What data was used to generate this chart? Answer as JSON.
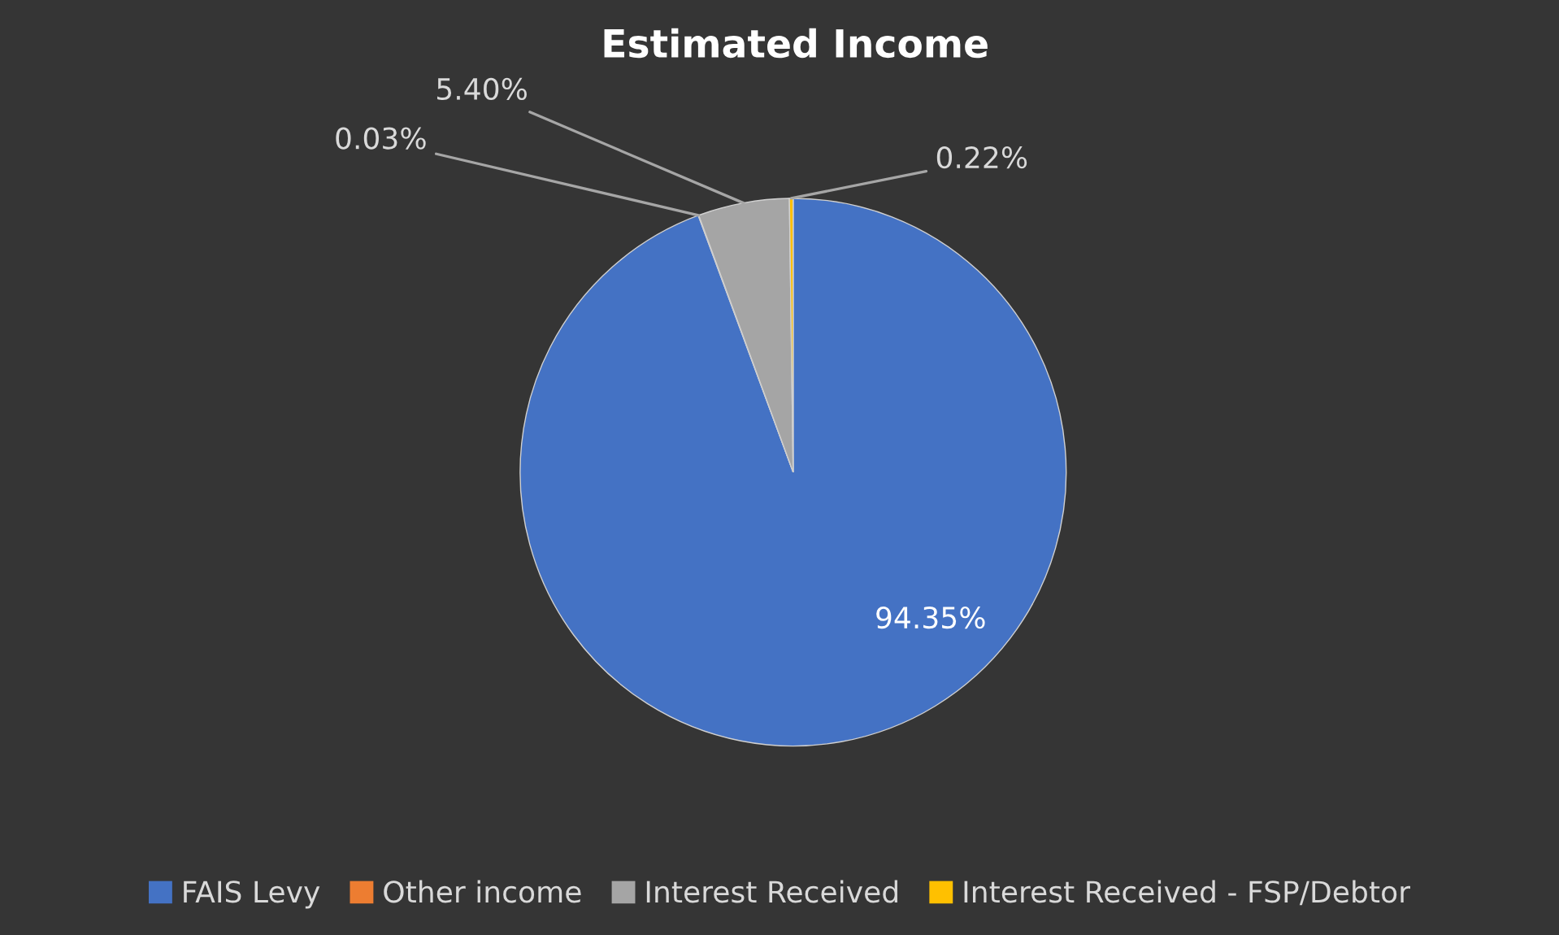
{
  "chart_data": {
    "type": "pie",
    "title": "Estimated Income",
    "categories": [
      "FAIS Levy",
      "Other income",
      "Interest Received",
      "Interest Received - FSP/Debtor"
    ],
    "values": [
      94.35,
      0.03,
      5.4,
      0.22
    ],
    "colors": [
      "#4472c4",
      "#ed7d31",
      "#a5a5a5",
      "#ffc000"
    ],
    "value_labels": [
      "94.35%",
      "0.03%",
      "5.40%",
      "0.22%"
    ],
    "legend": "bottom"
  }
}
